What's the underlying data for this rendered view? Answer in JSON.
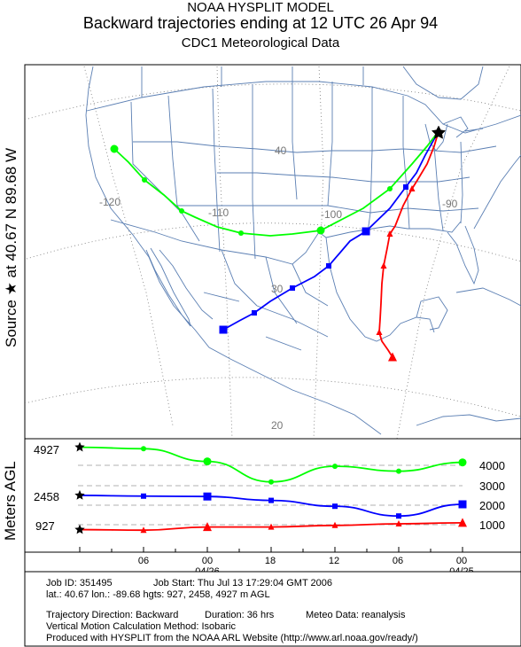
{
  "header": {
    "line1": "NOAA HYSPLIT MODEL",
    "line2": "Backward trajectories ending at 12 UTC 26 Apr 94",
    "line3": "CDC1 Meteorological Data"
  },
  "side_label": "Source ★ at  40.67 N   89.68 W",
  "map": {
    "lon_labels": [
      "-120",
      "-110",
      "-100",
      "-90"
    ],
    "lat_labels": [
      "40",
      "30",
      "20"
    ],
    "source_marker": "star",
    "trajectories": [
      {
        "height_m": 927,
        "color": "#ff0000",
        "marker": "triangle"
      },
      {
        "height_m": 2458,
        "color": "#0000ff",
        "marker": "square"
      },
      {
        "height_m": 4927,
        "color": "#00ff00",
        "marker": "circle"
      }
    ]
  },
  "height_panel": {
    "ylabel": "Meters AGL",
    "start_heights": [
      "4927",
      "2458",
      "927"
    ],
    "right_ticks": [
      "4000",
      "3000",
      "2000",
      "1000"
    ],
    "time_ticks": [
      "06",
      "00",
      "18",
      "12",
      "06",
      "00"
    ],
    "date_labels": [
      "04/26",
      "04/25"
    ]
  },
  "chart_data": {
    "type": "line",
    "title": "",
    "xlabel": "",
    "ylabel": "Meters AGL",
    "x": [
      "12 UTC 26 Apr",
      "06 UTC 26 Apr",
      "00 UTC 26 Apr",
      "18 UTC 25 Apr",
      "12 UTC 25 Apr",
      "06 UTC 25 Apr",
      "00 UTC 25 Apr"
    ],
    "series": [
      {
        "name": "927",
        "values": [
          927,
          920,
          960,
          960,
          980,
          1000,
          1050
        ]
      },
      {
        "name": "2458",
        "values": [
          2458,
          2420,
          2400,
          2200,
          1900,
          1400,
          2000
        ]
      },
      {
        "name": "4927",
        "values": [
          4927,
          4850,
          4200,
          3150,
          3950,
          3700,
          4150
        ]
      }
    ],
    "ylim": [
      0,
      5000
    ]
  },
  "info": {
    "job_id": "Job ID: 351495",
    "job_start": "Job Start: Thu Jul 13 17:29:04 GMT 2006",
    "location": "lat.: 40.67  lon.: -89.68  hgts: 927, 2458, 4927 m AGL",
    "direction": "Trajectory Direction: Backward",
    "duration": "Duration: 36 hrs",
    "meteo": "Meteo Data: reanalysis",
    "vertical": "Vertical Motion Calculation Method: Isobaric",
    "produced": "Produced with HYSPLIT from the NOAA ARL Website (http://www.arl.noaa.gov/ready/)"
  }
}
